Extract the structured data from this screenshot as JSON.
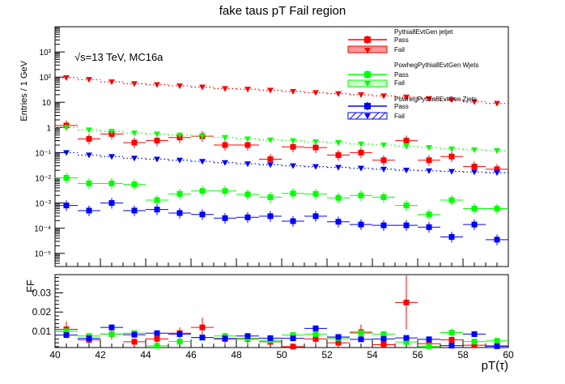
{
  "chart_data": [
    {
      "type": "scatter",
      "title": "fake taus pT Fail region",
      "ylabel": "Entries / 1 GeV",
      "xlabel": "",
      "yscale": "log",
      "ylim": [
        3e-06,
        10000.0
      ],
      "xlim": [
        40,
        60
      ],
      "annotation": "√s=13 TeV, MC16a",
      "x_ticks": [
        "40",
        "42",
        "44",
        "46",
        "48",
        "50",
        "52",
        "54",
        "56",
        "58",
        "60"
      ],
      "y_ticks": [
        "10⁻⁵",
        "10⁻⁴",
        "10⁻³",
        "10⁻²",
        "10⁻¹",
        "1",
        "10",
        "10²",
        "10³"
      ],
      "bin_width": 1,
      "x": [
        40.5,
        41.5,
        42.5,
        43.5,
        44.5,
        45.5,
        46.5,
        47.5,
        48.5,
        49.5,
        50.5,
        51.5,
        52.5,
        53.5,
        54.5,
        55.5,
        56.5,
        57.5,
        58.5,
        59.5
      ],
      "legend": [
        {
          "group": "Pythia8EvtGen jetjet",
          "pass": "Pass",
          "fail": "Fail",
          "color": "#ff0000"
        },
        {
          "group": "PowhegPythia8EvtGen Wjets",
          "pass": "Pass",
          "fail": "Fail",
          "color": "#00ff00"
        },
        {
          "group": "PowhegPythia8EvtGen Zjets",
          "pass": "Pass",
          "fail": "Fail",
          "color": "#0000ff"
        }
      ],
      "series": [
        {
          "name": "Pythia8EvtGen jetjet Pass",
          "color": "#ff0000",
          "marker": "square",
          "values": [
            1.2,
            0.35,
            0.55,
            0.25,
            0.3,
            0.4,
            0.45,
            0.2,
            0.2,
            0.055,
            0.17,
            0.16,
            0.08,
            0.1,
            0.05,
            0.3,
            0.05,
            0.07,
            0.028,
            0.022
          ]
        },
        {
          "name": "Pythia8EvtGen jetjet Fail",
          "color": "#ff0000",
          "marker": "triangle-down",
          "values": [
            95,
            80,
            65,
            55,
            50,
            45,
            40,
            35,
            33,
            30,
            27,
            24,
            22,
            20,
            18,
            16,
            14,
            12.5,
            10.5,
            9
          ]
        },
        {
          "name": "PowhegPythia8EvtGen Wjets Pass",
          "color": "#00ff00",
          "marker": "square",
          "values": [
            0.01,
            0.006,
            0.006,
            0.0055,
            0.0013,
            0.0023,
            0.003,
            0.003,
            0.0022,
            0.0017,
            0.0024,
            0.0023,
            0.0016,
            0.002,
            0.0017,
            0.0008,
            0.00035,
            0.0013,
            0.0006,
            0.0006
          ]
        },
        {
          "name": "PowhegPythia8EvtGen Wjets Fail",
          "color": "#00ff00",
          "marker": "triangle-down",
          "values": [
            1.0,
            0.8,
            0.7,
            0.6,
            0.55,
            0.5,
            0.45,
            0.4,
            0.35,
            0.32,
            0.3,
            0.27,
            0.25,
            0.22,
            0.2,
            0.18,
            0.16,
            0.14,
            0.13,
            0.12
          ]
        },
        {
          "name": "PowhegPythia8EvtGen Zjets Pass",
          "color": "#0000ff",
          "marker": "square",
          "values": [
            0.0008,
            0.0005,
            0.001,
            0.0005,
            0.00055,
            0.0004,
            0.00035,
            0.00025,
            0.00027,
            0.0003,
            0.00019,
            0.0003,
            0.00018,
            0.00014,
            0.00013,
            0.00013,
            0.00011,
            4.5e-05,
            0.00014,
            3.5e-05
          ]
        },
        {
          "name": "PowhegPythia8EvtGen Zjets Fail",
          "color": "#0000ff",
          "marker": "triangle-down",
          "values": [
            0.1,
            0.08,
            0.07,
            0.06,
            0.055,
            0.05,
            0.045,
            0.04,
            0.036,
            0.033,
            0.03,
            0.028,
            0.026,
            0.024,
            0.022,
            0.02,
            0.019,
            0.018,
            0.017,
            0.016
          ]
        }
      ]
    },
    {
      "type": "scatter",
      "title": "",
      "ylabel": "FF",
      "xlabel": "pT(τ)",
      "yscale": "linear",
      "ylim": [
        0.0015,
        0.0395
      ],
      "xlim": [
        40,
        60
      ],
      "x_ticks": [
        "40",
        "42",
        "44",
        "46",
        "48",
        "50",
        "52",
        "54",
        "56",
        "58",
        "60"
      ],
      "y_ticks": [
        "0.01",
        "0.02",
        "0.03"
      ],
      "x": [
        40.5,
        41.5,
        42.5,
        43.5,
        44.5,
        45.5,
        46.5,
        47.5,
        48.5,
        49.5,
        50.5,
        51.5,
        52.5,
        53.5,
        54.5,
        55.5,
        56.5,
        57.5,
        58.5,
        59.5
      ],
      "series": [
        {
          "name": "Pythia8EvtGen jetjet",
          "color": "#ff0000",
          "values": [
            0.011,
            0.0055,
            0.0085,
            0.0045,
            0.006,
            0.009,
            0.012,
            0.006,
            0.006,
            0.0045,
            0.002,
            0.006,
            0.004,
            0.0095,
            0.003,
            0.025,
            0.0035,
            0.0055,
            0.0027,
            0.0024
          ],
          "errors": [
            0.004,
            0.002,
            0.003,
            0.002,
            0.003,
            0.003,
            0.005,
            0.003,
            0.003,
            0.002,
            0.001,
            0.003,
            0.002,
            0.004,
            0.0015,
            0.014,
            0.002,
            0.003,
            0.0015,
            0.0012
          ]
        },
        {
          "name": "PowhegPythia8EvtGen Wjets",
          "color": "#00ff00",
          "values": [
            0.01,
            0.0075,
            0.0085,
            0.009,
            0.0024,
            0.0046,
            0.0067,
            0.0075,
            0.0063,
            0.0053,
            0.008,
            0.0085,
            0.0064,
            0.009,
            0.0085,
            0.0044,
            0.0022,
            0.0093,
            0.0046,
            0.005
          ],
          "errors": [
            0.0015,
            0.0012,
            0.0012,
            0.0012,
            0.0008,
            0.001,
            0.001,
            0.0012,
            0.001,
            0.001,
            0.0012,
            0.0012,
            0.0012,
            0.0015,
            0.0015,
            0.0015,
            0.001,
            0.002,
            0.0015,
            0.0015
          ]
        },
        {
          "name": "PowhegPythia8EvtGen Zjets",
          "color": "#0000ff",
          "values": [
            0.008,
            0.0063,
            0.012,
            0.0082,
            0.009,
            0.0085,
            0.0067,
            0.0062,
            0.0075,
            0.0064,
            0.0063,
            0.0115,
            0.007,
            0.0058,
            0.006,
            0.0065,
            0.0058,
            0.0025,
            0.0085,
            0.0022
          ],
          "errors": [
            0.0012,
            0.001,
            0.0015,
            0.0012,
            0.0012,
            0.0012,
            0.0012,
            0.0012,
            0.0012,
            0.0012,
            0.0012,
            0.0015,
            0.0012,
            0.0012,
            0.0012,
            0.0012,
            0.0012,
            0.001,
            0.0015,
            0.001
          ]
        }
      ]
    }
  ]
}
